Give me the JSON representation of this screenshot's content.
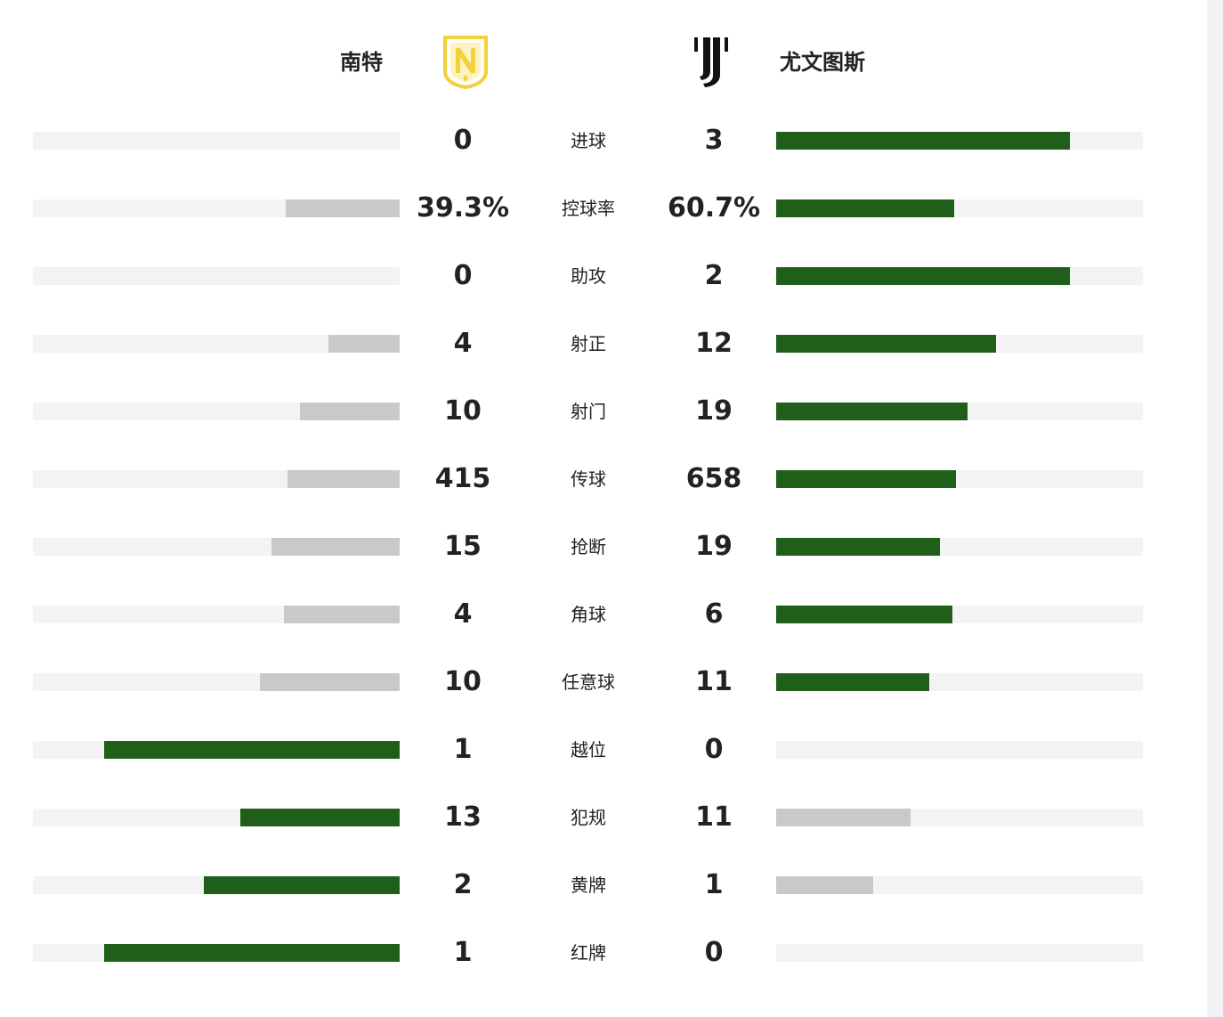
{
  "home": {
    "name": "南特",
    "logo_icon": "fc-nantes-crest-icon",
    "logo_color": "#f2d13a"
  },
  "away": {
    "name": "尤文图斯",
    "logo_icon": "juventus-j-logo-icon",
    "logo_color": "#111111"
  },
  "colors": {
    "leader_bar": "#1f5f1a",
    "trailer_bar": "#c9c9cb",
    "track": "#f3f3f5"
  },
  "stats": [
    {
      "label": "进球",
      "home": "0",
      "away": "3",
      "home_share": 0.0,
      "away_share": 0.8,
      "leader": "away"
    },
    {
      "label": "控球率",
      "home": "39.3%",
      "away": "60.7%",
      "home_share": 0.31,
      "away_share": 0.485,
      "leader": "away"
    },
    {
      "label": "助攻",
      "home": "0",
      "away": "2",
      "home_share": 0.0,
      "away_share": 0.8,
      "leader": "away"
    },
    {
      "label": "射正",
      "home": "4",
      "away": "12",
      "home_share": 0.195,
      "away_share": 0.6,
      "leader": "away"
    },
    {
      "label": "射门",
      "home": "10",
      "away": "19",
      "home_share": 0.273,
      "away_share": 0.522,
      "leader": "away"
    },
    {
      "label": "传球",
      "home": "415",
      "away": "658",
      "home_share": 0.306,
      "away_share": 0.49,
      "leader": "away"
    },
    {
      "label": "抢断",
      "home": "15",
      "away": "19",
      "home_share": 0.35,
      "away_share": 0.446,
      "leader": "away"
    },
    {
      "label": "角球",
      "home": "4",
      "away": "6",
      "home_share": 0.316,
      "away_share": 0.48,
      "leader": "away"
    },
    {
      "label": "任意球",
      "home": "10",
      "away": "11",
      "home_share": 0.38,
      "away_share": 0.417,
      "leader": "away"
    },
    {
      "label": "越位",
      "home": "1",
      "away": "0",
      "home_share": 0.805,
      "away_share": 0.0,
      "leader": "home"
    },
    {
      "label": "犯规",
      "home": "13",
      "away": "11",
      "home_share": 0.435,
      "away_share": 0.366,
      "leader": "home"
    },
    {
      "label": "黄牌",
      "home": "2",
      "away": "1",
      "home_share": 0.534,
      "away_share": 0.264,
      "leader": "home"
    },
    {
      "label": "红牌",
      "home": "1",
      "away": "0",
      "home_share": 0.805,
      "away_share": 0.0,
      "leader": "home"
    }
  ]
}
